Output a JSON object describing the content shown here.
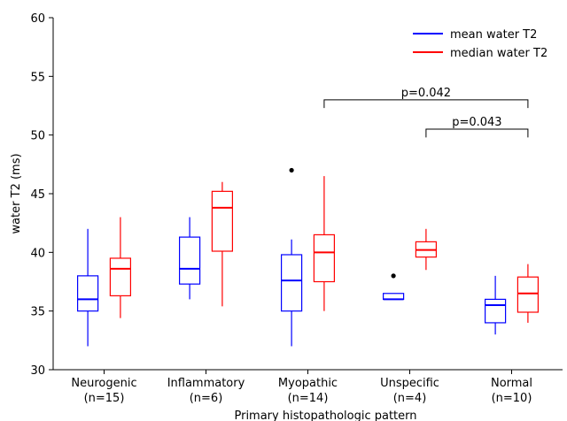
{
  "chart_data": {
    "type": "box",
    "title": "",
    "xlabel": "Primary histopathologic pattern",
    "ylabel": "water T2 (ms)",
    "ylim": [
      30,
      60
    ],
    "yticks": [
      30,
      35,
      40,
      45,
      50,
      55,
      60
    ],
    "grid": false,
    "legend_position": "top-right",
    "categories": [
      {
        "name": "Neurogenic",
        "n": "(n=15)"
      },
      {
        "name": "Inflammatory",
        "n": "(n=6)"
      },
      {
        "name": "Myopathic",
        "n": "(n=14)"
      },
      {
        "name": "Unspecific",
        "n": "(n=4)"
      },
      {
        "name": "Normal",
        "n": "(n=10)"
      }
    ],
    "series": [
      {
        "name": "mean water T2",
        "color": "#0000ff",
        "boxes": [
          {
            "whislo": 32.0,
            "q1": 35.0,
            "med": 36.0,
            "q3": 38.0,
            "whishi": 42.0,
            "fliers": []
          },
          {
            "whislo": 36.0,
            "q1": 37.3,
            "med": 38.6,
            "q3": 41.3,
            "whishi": 43.0,
            "fliers": []
          },
          {
            "whislo": 32.0,
            "q1": 35.0,
            "med": 37.6,
            "q3": 39.8,
            "whishi": 41.1,
            "fliers": [
              47.0
            ]
          },
          {
            "whislo": 36.0,
            "q1": 36.0,
            "med": 36.0,
            "q3": 36.5,
            "whishi": 36.5,
            "fliers": [
              38.0
            ]
          },
          {
            "whislo": 33.0,
            "q1": 34.0,
            "med": 35.5,
            "q3": 36.0,
            "whishi": 38.0,
            "fliers": []
          }
        ]
      },
      {
        "name": "median water T2",
        "color": "#ff0000",
        "boxes": [
          {
            "whislo": 34.4,
            "q1": 36.3,
            "med": 38.6,
            "q3": 39.5,
            "whishi": 43.0,
            "fliers": []
          },
          {
            "whislo": 35.4,
            "q1": 40.1,
            "med": 43.8,
            "q3": 45.2,
            "whishi": 46.0,
            "fliers": []
          },
          {
            "whislo": 35.0,
            "q1": 37.5,
            "med": 40.0,
            "q3": 41.5,
            "whishi": 46.5,
            "fliers": []
          },
          {
            "whislo": 38.5,
            "q1": 39.6,
            "med": 40.2,
            "q3": 40.9,
            "whishi": 42.0,
            "fliers": []
          },
          {
            "whislo": 34.0,
            "q1": 34.9,
            "med": 36.5,
            "q3": 37.9,
            "whishi": 39.0,
            "fliers": []
          }
        ]
      }
    ],
    "annotations": [
      {
        "text": "p=0.042",
        "from_category": 2,
        "from_series": 1,
        "to_category": 4,
        "to_series": 1,
        "y": 53.0,
        "tick_end": 52.3
      },
      {
        "text": "p=0.043",
        "from_category": 3,
        "from_series": 1,
        "to_category": 4,
        "to_series": 1,
        "y": 50.5,
        "tick_end": 49.8
      }
    ]
  }
}
